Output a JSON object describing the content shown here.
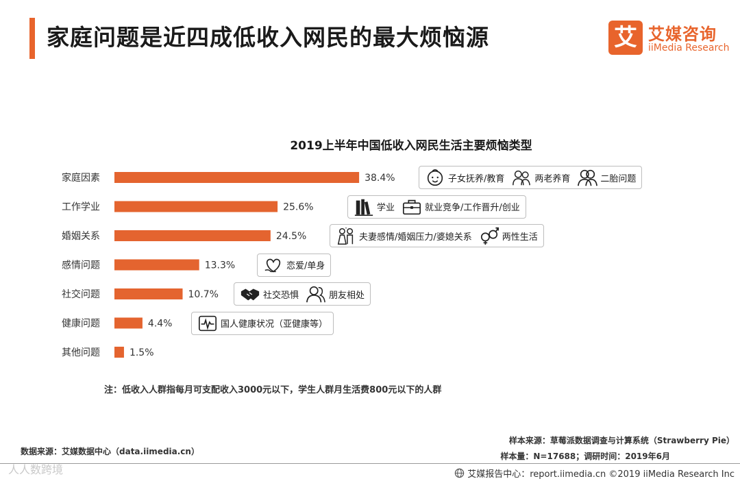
{
  "colors": {
    "accent": "#e8642c",
    "bar": "#e4642f",
    "border": "#bdbdbd"
  },
  "page_title": "家庭问题是近四成低收入网民的最大烦恼源",
  "logo": {
    "mark": "艾",
    "cn": "艾媒咨询",
    "en": "iiMedia Research"
  },
  "chart_data": {
    "type": "bar",
    "orientation": "horizontal",
    "title": "2019上半年中国低收入网民生活主要烦恼类型",
    "categories": [
      "家庭因素",
      "工作学业",
      "婚姻关系",
      "感情问题",
      "社交问题",
      "健康问题",
      "其他问题"
    ],
    "values": [
      38.4,
      25.6,
      24.5,
      13.3,
      10.7,
      4.4,
      1.5
    ],
    "value_labels": [
      "38.4%",
      "25.6%",
      "24.5%",
      "13.3%",
      "10.7%",
      "4.4%",
      "1.5%"
    ],
    "unit": "%",
    "xlim": [
      0,
      40
    ],
    "grid": false,
    "legend": "none"
  },
  "tags": [
    {
      "row": 0,
      "items": [
        {
          "icon": "baby-face-icon",
          "text": "子女抚养/教育"
        },
        {
          "icon": "elderly-couple-icon",
          "text": "两老养育"
        },
        {
          "icon": "two-people-icon",
          "text": "二胎问题"
        }
      ]
    },
    {
      "row": 1,
      "items": [
        {
          "icon": "books-icon",
          "text": "学业"
        },
        {
          "icon": "briefcase-icon",
          "text": "就业竞争/工作晋升/创业"
        }
      ]
    },
    {
      "row": 2,
      "items": [
        {
          "icon": "wedding-couple-icon",
          "text": "夫妻感情/婚姻压力/婆媳关系"
        },
        {
          "icon": "gender-symbols-icon",
          "text": "两性生活"
        }
      ]
    },
    {
      "row": 3,
      "items": [
        {
          "icon": "heart-hand-icon",
          "text": "恋爱/单身"
        }
      ]
    },
    {
      "row": 4,
      "items": [
        {
          "icon": "handshake-icon",
          "text": "社交恐惧"
        },
        {
          "icon": "friends-icon",
          "text": "朋友相处"
        }
      ]
    },
    {
      "row": 5,
      "items": [
        {
          "icon": "heart-monitor-icon",
          "text": "国人健康状况（亚健康等）"
        }
      ]
    }
  ],
  "note": "注：低收入人群指每月可支配收入3000元以下，学生人群月生活费800元以下的人群",
  "source": {
    "data": "数据来源：艾媒数据中心（data.iimedia.cn）",
    "sample_source": "样本来源：草莓派数据调查与计算系统（Strawberry Pie）",
    "sample_size": "样本量：N=17688；调研时间：2019年6月"
  },
  "footer": {
    "text": "艾媒报告中心：report.iimedia.cn  ©2019  iiMedia Research  Inc"
  },
  "watermark": "人人数跨境"
}
